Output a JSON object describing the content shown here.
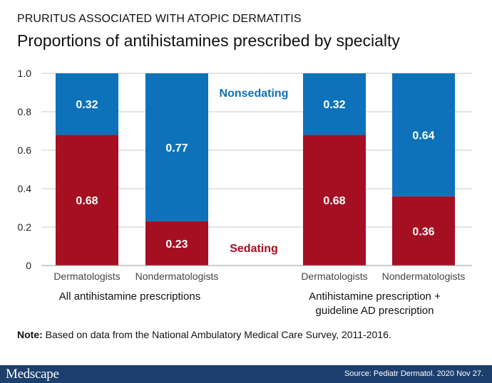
{
  "header": {
    "kicker": "PRURITUS ASSOCIATED WITH ATOPIC DERMATITIS",
    "title": "Proportions of antihistamines prescribed by specialty"
  },
  "chart_data": {
    "type": "bar",
    "stacked": true,
    "title": "Proportions of antihistamines prescribed by specialty",
    "ylim": [
      0,
      1.0
    ],
    "yticks": [
      "0",
      "0.2",
      "0.4",
      "0.6",
      "0.8",
      "1.0"
    ],
    "categories": [
      "Dermatologists",
      "Nondermatologists",
      "Dermatologists",
      "Nondermatologists"
    ],
    "groups": [
      {
        "label_lines": [
          "All antihistamine prescriptions"
        ],
        "categories": [
          0,
          1
        ]
      },
      {
        "label_lines": [
          "Antihistamine prescription +",
          "guideline AD prescription"
        ],
        "categories": [
          2,
          3
        ]
      }
    ],
    "series": [
      {
        "name": "Sedating",
        "color": "#a50f22",
        "values": [
          0.68,
          0.23,
          0.68,
          0.36
        ],
        "labels": [
          "0.68",
          "0.23",
          "0.68",
          "0.36"
        ]
      },
      {
        "name": "Nonsedating",
        "color": "#0d72b9",
        "values": [
          0.32,
          0.77,
          0.32,
          0.64
        ],
        "labels": [
          "0.32",
          "0.77",
          "0.32",
          "0.64"
        ]
      }
    ],
    "grid": true
  },
  "note": {
    "label": "Note:",
    "text": " Based on data from the National Ambulatory Medical Care Survey, 2011-2016."
  },
  "footer": {
    "brand": "Medscape",
    "source": "Source: Pediatr Dermatol. 2020 Nov 27."
  }
}
